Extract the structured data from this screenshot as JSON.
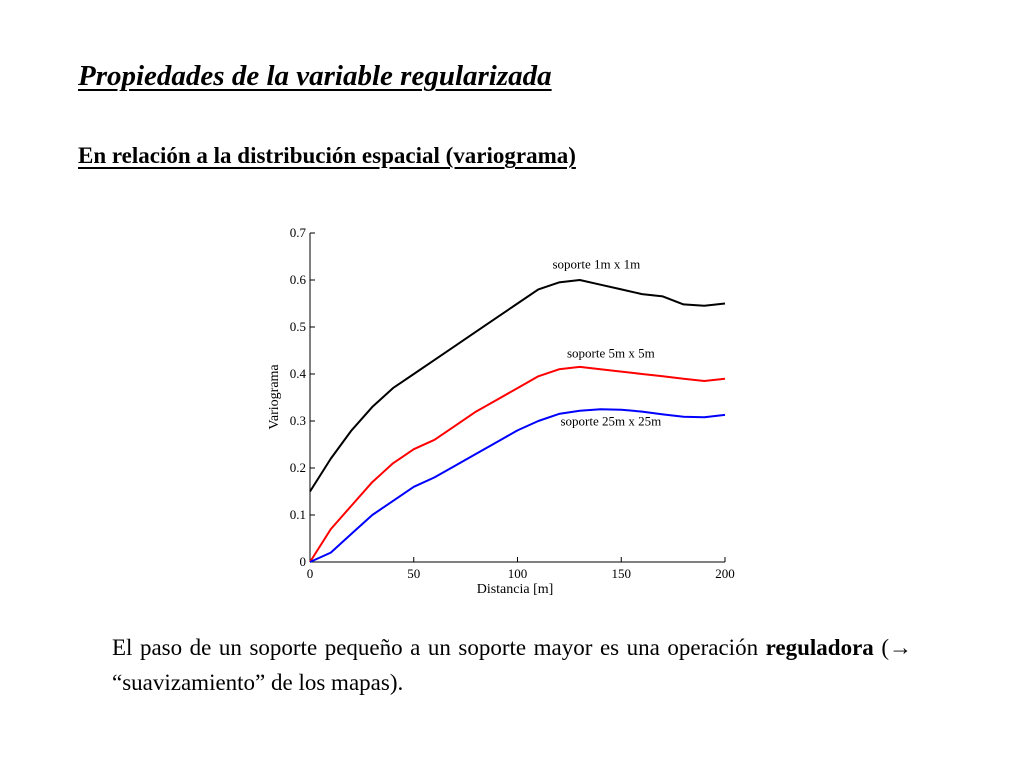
{
  "slide": {
    "title": "Propiedades de la variable regularizada",
    "subtitle": "En relación a la distribución espacial (variograma)",
    "body": {
      "line1": "El paso de un soporte pequeño a un soporte mayor es una operación",
      "bold_word": "reguladora",
      "paren_open": " (",
      "arrow": "→",
      "rest": " “suavizamiento” de los mapas)."
    }
  },
  "chart_data": {
    "type": "line",
    "title": "",
    "xlabel": "Distancia [m]",
    "ylabel": "Variograma",
    "xlim": [
      0,
      200
    ],
    "ylim": [
      0,
      0.7
    ],
    "xticks": [
      0,
      50,
      100,
      150,
      200
    ],
    "yticks": [
      0,
      0.1,
      0.2,
      0.3,
      0.4,
      0.5,
      0.6,
      0.7
    ],
    "x": [
      0,
      10,
      20,
      30,
      40,
      50,
      60,
      70,
      80,
      90,
      100,
      110,
      120,
      130,
      140,
      150,
      160,
      170,
      180,
      190,
      200
    ],
    "series": [
      {
        "name": "soporte 1m x 1m",
        "color": "#000000",
        "values": [
          0.15,
          0.22,
          0.28,
          0.33,
          0.37,
          0.4,
          0.43,
          0.46,
          0.49,
          0.52,
          0.55,
          0.58,
          0.595,
          0.6,
          0.59,
          0.58,
          0.57,
          0.565,
          0.548,
          0.545,
          0.55
        ]
      },
      {
        "name": "soporte 5m x 5m",
        "color": "#ff0000",
        "values": [
          0.0,
          0.07,
          0.12,
          0.17,
          0.21,
          0.24,
          0.26,
          0.29,
          0.32,
          0.345,
          0.37,
          0.395,
          0.41,
          0.415,
          0.41,
          0.405,
          0.4,
          0.395,
          0.39,
          0.385,
          0.39
        ]
      },
      {
        "name": "soporte 25m x 25m",
        "color": "#0000ff",
        "values": [
          0.0,
          0.02,
          0.06,
          0.1,
          0.13,
          0.16,
          0.18,
          0.205,
          0.23,
          0.255,
          0.28,
          0.3,
          0.315,
          0.322,
          0.325,
          0.324,
          0.32,
          0.314,
          0.309,
          0.308,
          0.313
        ]
      }
    ]
  }
}
